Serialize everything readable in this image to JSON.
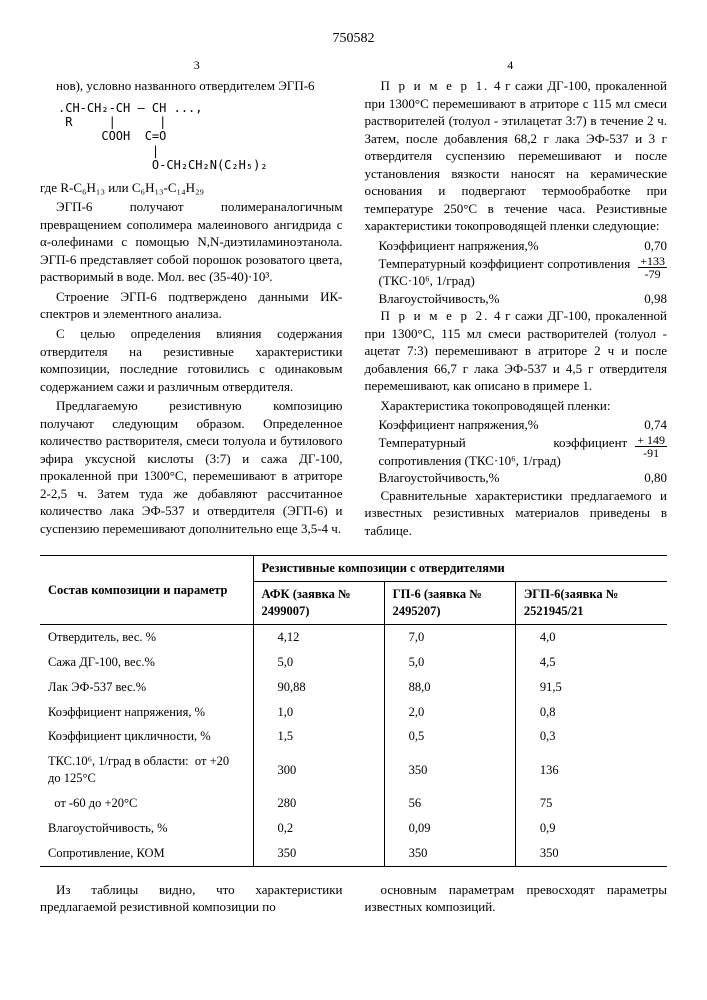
{
  "doc_number": "750582",
  "page_left": "3",
  "page_right": "4",
  "left": {
    "p1": "нов), условно названного отвердителем ЭГП-6",
    "formula_l1": ".CH-CH₂-CH — CH ...,",
    "formula_l2": " R     |      |",
    "formula_l3": "      COOH  C=O",
    "formula_l4": "             |",
    "formula_l5": "             O-CH₂CH₂N(C₂H₅)₂",
    "where": "где  R-C₆H₁₃  или  C₆H₁₃-C₁₄H₂₉",
    "p2": "ЭГП-6 получают полимераналогичным превращением сополимера малеинового ангидрида с α-олефинами с помощью N,N-диэтиламиноэтанола. ЭГП-6 представляет собой порошок розоватого цвета, растворимый в воде. Мол. вес (35-40)·10³.",
    "p3": "Строение ЭГП-6 подтверждено данными ИК-спектров и элементного анализа.",
    "p4": "С целью определения влияния содержания отвердителя на резистивные характеристики композиции, последние готовились с одинаковым содержанием сажи и различным отвердителя.",
    "p5": "Предлагаемую резистивную композицию получают следующим образом. Определенное количество растворителя, смеси толуола и бутилового эфира уксусной кислоты (3:7) и сажа ДГ-100, прокаленной при 1300°С, перемешивают в атриторе 2-2,5 ч. Затем туда же добавляют рассчитанное количество лака ЭФ-537 и отвердителя (ЭГП-6) и суспензию перемешивают дополнительно еще 3,5-4 ч."
  },
  "right": {
    "ex1_lead": "П р и м е р 1.",
    "ex1": "4 г сажи ДГ-100, прокаленной при 1300°С перемешивают в атриторе с 115 мл смеси растворителей (толуол - этилацетат 3:7) в течение 2 ч. Затем, после добавления 68,2 г лака ЭФ-537 и 3 г отвердителя суспензию перемешивают и после установления вязкости наносят на керамические основания и подвергают термообработке при температуре 250°С в течение часа. Резистивные характеристики токопроводящей пленки следующие:",
    "s1a_lbl": "Коэффициент напряжения,%",
    "s1a_val": "0,70",
    "s1b_lbl": "Температурный коэффициент сопротивления (ТКС·10⁶, 1/град)",
    "s1b_top": "+133",
    "s1b_bot": "-79",
    "s1c_lbl": "Влагоустойчивость,%",
    "s1c_val": "0,98",
    "ex2_lead": "П р и м е р 2.",
    "ex2": "4 г сажи ДГ-100, прокаленной при 1300°С, 115 мл смеси растворителей (толуол - ацетат 7:3) перемешивают в атриторе 2 ч и после добавления 66,7 г лака ЭФ-537 и 4,5 г отвердителя перемешивают, как описано в примере 1.",
    "char_title": "Характеристика токопроводящей пленки:",
    "s2a_lbl": "Коэффициент напряжения,%",
    "s2a_val": "0,74",
    "s2b_lbl": "Температурный коэффициент сопротивления (ТКС·10⁶, 1/град)",
    "s2b_top": "+ 149",
    "s2b_bot": "-91",
    "s2c_lbl": "Влагоустойчивость,%",
    "s2c_val": "0,80",
    "p_last": "Сравнительные характеристики предлагаемого и известных резистивных материалов приведены в таблице."
  },
  "table": {
    "h_left": "Состав композиции и параметр",
    "h_right": "Резистивные композиции с отвердителями",
    "sub1": "АФК (заявка № 2499007)",
    "sub2": "ГП-6 (заявка № 2495207)",
    "sub3": "ЭГП-6(заявка № 2521945/21",
    "rows": [
      [
        "Отвердитель, вес. %",
        "4,12",
        "7,0",
        "4,0"
      ],
      [
        "Сажа ДГ-100, вес.%",
        "5,0",
        "5,0",
        "4,5"
      ],
      [
        "Лак ЭФ-537 вес.%",
        "90,88",
        "88,0",
        "91,5"
      ],
      [
        "Коэффициент напряжения, %",
        "1,0",
        "2,0",
        "0,8"
      ],
      [
        "Коэффициент цикличности, %",
        "1,5",
        "0,5",
        "0,3"
      ],
      [
        "ТКС.10⁶, 1/град в области:  от +20 до 125°С",
        "300",
        "350",
        "136"
      ],
      [
        "  от -60 до +20°С",
        "280",
        "56",
        "75"
      ],
      [
        "Влагоустойчивость, %",
        "0,2",
        "0,09",
        "0,9"
      ],
      [
        "Сопротивление, КОМ",
        "350",
        "350",
        "350"
      ]
    ]
  },
  "footer": {
    "left": "Из таблицы видно, что характеристики предлагаемой резистивной композиции по",
    "right": "основным параметрам превосходят параметры известных композиций."
  }
}
